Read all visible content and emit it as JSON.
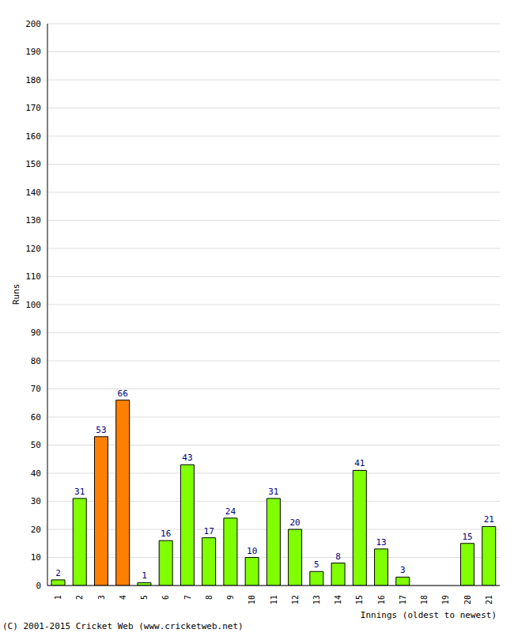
{
  "chart_data": {
    "type": "bar",
    "categories": [
      "1",
      "2",
      "3",
      "4",
      "5",
      "6",
      "7",
      "8",
      "9",
      "10",
      "11",
      "12",
      "13",
      "14",
      "15",
      "16",
      "17",
      "18",
      "19",
      "20",
      "21"
    ],
    "values": [
      2,
      31,
      53,
      66,
      1,
      16,
      43,
      17,
      24,
      10,
      31,
      20,
      5,
      8,
      41,
      13,
      3,
      0,
      0,
      15,
      21
    ],
    "colors": [
      "#80ff00",
      "#80ff00",
      "#ff8000",
      "#ff8000",
      "#80ff00",
      "#80ff00",
      "#80ff00",
      "#80ff00",
      "#80ff00",
      "#80ff00",
      "#80ff00",
      "#80ff00",
      "#80ff00",
      "#80ff00",
      "#80ff00",
      "#80ff00",
      "#80ff00",
      "#80ff00",
      "#80ff00",
      "#80ff00",
      "#80ff00"
    ],
    "y_label": "Runs",
    "x_label": "Innings (oldest to newest)",
    "annotations": [
      "(C) 2001-2015 Cricket Web (www.cricketweb.net)"
    ],
    "ylim": [
      0,
      200
    ],
    "yticks": [
      0,
      10,
      20,
      30,
      40,
      50,
      60,
      70,
      80,
      90,
      100,
      110,
      120,
      130,
      140,
      150,
      160,
      170,
      180,
      190,
      200
    ],
    "grid": true,
    "data_labels": true
  }
}
